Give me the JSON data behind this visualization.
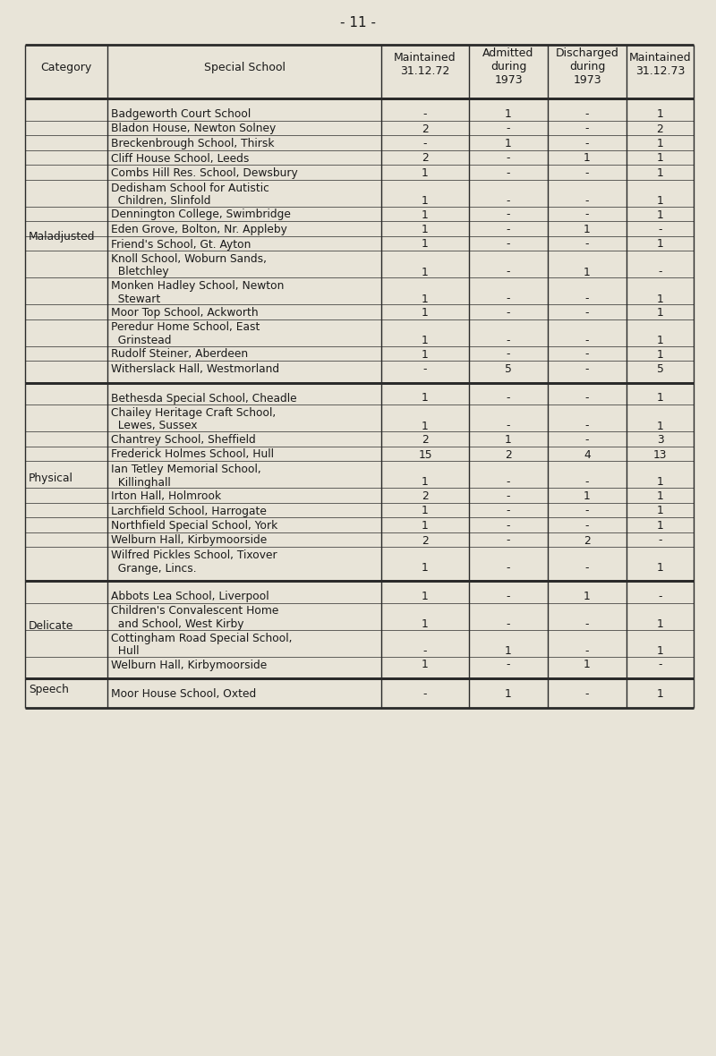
{
  "page_title": "- 11 -",
  "bg_color": "#e8e4d8",
  "sections": [
    {
      "category": "Maladjusted",
      "rows": [
        {
          "school": "Badgeworth Court School",
          "line2": null,
          "m72": "-",
          "adm": "1",
          "dis": "-",
          "m73": "1"
        },
        {
          "school": "Bladon House, Newton Solney",
          "line2": null,
          "m72": "2",
          "adm": "-",
          "dis": "-",
          "m73": "2"
        },
        {
          "school": "Breckenbrough School, Thirsk",
          "line2": null,
          "m72": "-",
          "adm": "1",
          "dis": "-",
          "m73": "1"
        },
        {
          "school": "Cliff House School, Leeds",
          "line2": null,
          "m72": "2",
          "adm": "-",
          "dis": "1",
          "m73": "1"
        },
        {
          "school": "Combs Hill Res. School, Dewsbury",
          "line2": null,
          "m72": "1",
          "adm": "-",
          "dis": "-",
          "m73": "1"
        },
        {
          "school": "Dedisham School for Autistic",
          "line2": "  Children, Slinfold",
          "m72": "1",
          "adm": "-",
          "dis": "-",
          "m73": "1"
        },
        {
          "school": "Dennington College, Swimbridge",
          "line2": null,
          "m72": "1",
          "adm": "-",
          "dis": "-",
          "m73": "1"
        },
        {
          "school": "Eden Grove, Bolton, Nr. Appleby",
          "line2": null,
          "m72": "1",
          "adm": "-",
          "dis": "1",
          "m73": "-"
        },
        {
          "school": "Friend's School, Gt. Ayton",
          "line2": null,
          "m72": "1",
          "adm": "-",
          "dis": "-",
          "m73": "1"
        },
        {
          "school": "Knoll School, Woburn Sands,",
          "line2": "  Bletchley",
          "m72": "1",
          "adm": "-",
          "dis": "1",
          "m73": "-"
        },
        {
          "school": "Monken Hadley School, Newton",
          "line2": "  Stewart",
          "m72": "1",
          "adm": "-",
          "dis": "-",
          "m73": "1"
        },
        {
          "school": "Moor Top School, Ackworth",
          "line2": null,
          "m72": "1",
          "adm": "-",
          "dis": "-",
          "m73": "1"
        },
        {
          "school": "Peredur Home School, East",
          "line2": "  Grinstead",
          "m72": "1",
          "adm": "-",
          "dis": "-",
          "m73": "1"
        },
        {
          "school": "Rudolf Steiner, Aberdeen",
          "line2": null,
          "m72": "1",
          "adm": "-",
          "dis": "-",
          "m73": "1"
        },
        {
          "school": "Witherslack Hall, Westmorland",
          "line2": null,
          "m72": "-",
          "adm": "5",
          "dis": "-",
          "m73": "5"
        }
      ]
    },
    {
      "category": "Physical",
      "rows": [
        {
          "school": "Bethesda Special School, Cheadle",
          "line2": null,
          "m72": "1",
          "adm": "-",
          "dis": "-",
          "m73": "1"
        },
        {
          "school": "Chailey Heritage Craft School,",
          "line2": "  Lewes, Sussex",
          "m72": "1",
          "adm": "-",
          "dis": "-",
          "m73": "1"
        },
        {
          "school": "Chantrey School, Sheffield",
          "line2": null,
          "m72": "2",
          "adm": "1",
          "dis": "-",
          "m73": "3"
        },
        {
          "school": "Frederick Holmes School, Hull",
          "line2": null,
          "m72": "15",
          "adm": "2",
          "dis": "4",
          "m73": "13"
        },
        {
          "school": "Ian Tetley Memorial School,",
          "line2": "  Killinghall",
          "m72": "1",
          "adm": "-",
          "dis": "-",
          "m73": "1"
        },
        {
          "school": "Irton Hall, Holmrook",
          "line2": null,
          "m72": "2",
          "adm": "-",
          "dis": "1",
          "m73": "1"
        },
        {
          "school": "Larchfield School, Harrogate",
          "line2": null,
          "m72": "1",
          "adm": "-",
          "dis": "-",
          "m73": "1"
        },
        {
          "school": "Northfield Special School, York",
          "line2": null,
          "m72": "1",
          "adm": "-",
          "dis": "-",
          "m73": "1"
        },
        {
          "school": "Welburn Hall, Kirbymoorside",
          "line2": null,
          "m72": "2",
          "adm": "-",
          "dis": "2",
          "m73": "-"
        },
        {
          "school": "Wilfred Pickles School, Tixover",
          "line2": "  Grange, Lincs.",
          "m72": "1",
          "adm": "-",
          "dis": "-",
          "m73": "1"
        }
      ]
    },
    {
      "category": "Delicate",
      "rows": [
        {
          "school": "Abbots Lea School, Liverpool",
          "line2": null,
          "m72": "1",
          "adm": "-",
          "dis": "1",
          "m73": "-"
        },
        {
          "school": "Children's Convalescent Home",
          "line2": "  and School, West Kirby",
          "m72": "1",
          "adm": "-",
          "dis": "-",
          "m73": "1"
        },
        {
          "school": "Cottingham Road Special School,",
          "line2": "  Hull",
          "m72": "-",
          "adm": "1",
          "dis": "-",
          "m73": "1"
        },
        {
          "school": "Welburn Hall, Kirbymoorside",
          "line2": null,
          "m72": "1",
          "adm": "-",
          "dis": "1",
          "m73": "-"
        }
      ]
    },
    {
      "category": "Speech",
      "rows": [
        {
          "school": "Moor House School, Oxted",
          "line2": null,
          "m72": "-",
          "adm": "1",
          "dis": "-",
          "m73": "1"
        }
      ]
    }
  ],
  "font_family": "Courier New",
  "title_fontsize": 11,
  "header_fontsize": 9,
  "body_fontsize": 8.8,
  "text_color": "#1a1a1a",
  "line_color": "#2a2a2a"
}
